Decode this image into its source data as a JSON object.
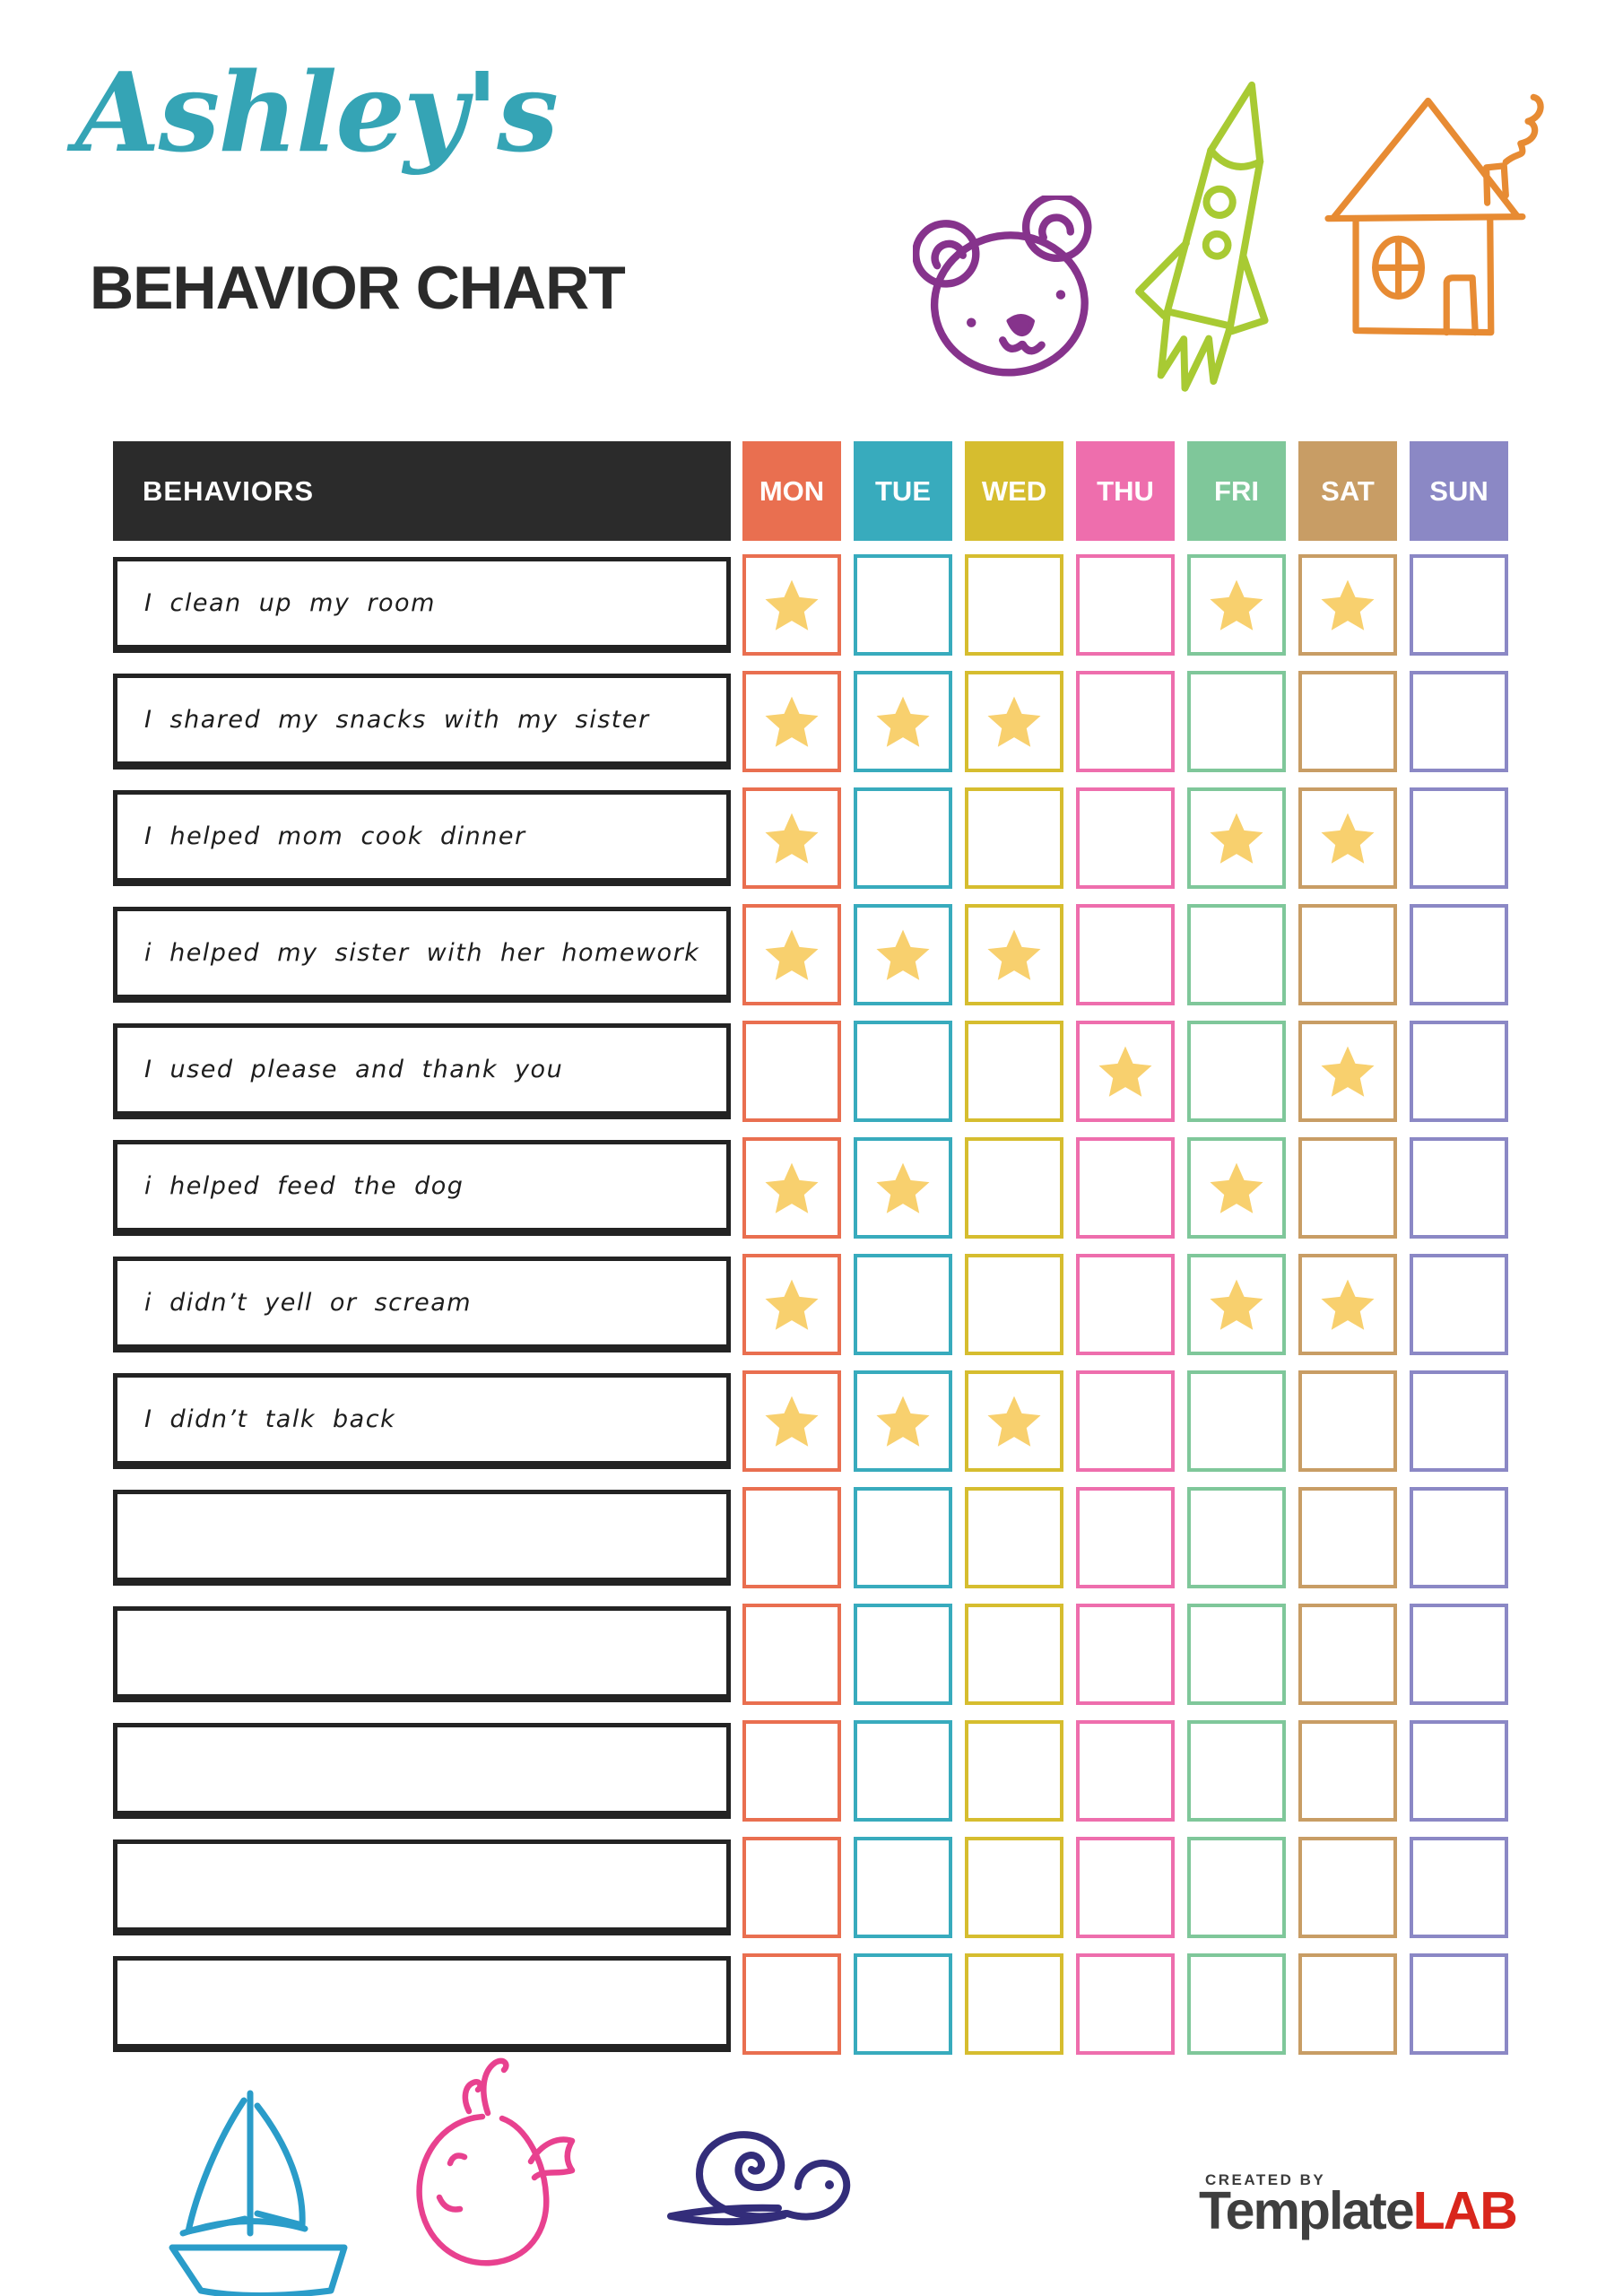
{
  "header": {
    "title": "Ashley's",
    "subtitle": "BEHAVIOR CHART",
    "title_color": "#35a4b5"
  },
  "icons": {
    "top": [
      "bear-icon",
      "rocket-icon",
      "house-icon"
    ],
    "bottom": [
      "sailboat-icon",
      "whale-icon",
      "snail-icon"
    ],
    "bear_color": "#86338c",
    "rocket_color": "#a8ca33",
    "house_color": "#e78b33",
    "sailboat_color": "#2a9cc9",
    "whale_color": "#e8418f",
    "snail_color": "#332d7a"
  },
  "table": {
    "behaviors_header": "BEHAVIORS",
    "header_bg": "#2b2b2b",
    "star_color": "#f8d06e",
    "days": [
      {
        "label": "MON",
        "color": "#e96f50"
      },
      {
        "label": "TUE",
        "color": "#38abbd"
      },
      {
        "label": "WED",
        "color": "#d6bd2f"
      },
      {
        "label": "THU",
        "color": "#ee6ead"
      },
      {
        "label": "FRI",
        "color": "#7fc79a"
      },
      {
        "label": "SAT",
        "color": "#c89d65"
      },
      {
        "label": "SUN",
        "color": "#8b88c5"
      }
    ],
    "rows": [
      {
        "label": "I clean up my room",
        "stars": [
          1,
          0,
          0,
          0,
          1,
          1,
          0
        ]
      },
      {
        "label": "I shared my snacks with my sister",
        "stars": [
          1,
          1,
          1,
          0,
          0,
          0,
          0
        ]
      },
      {
        "label": "I helped mom cook dinner",
        "stars": [
          1,
          0,
          0,
          0,
          1,
          1,
          0
        ]
      },
      {
        "label": "i helped my sister with her homework",
        "stars": [
          1,
          1,
          1,
          0,
          0,
          0,
          0
        ]
      },
      {
        "label": "I used please and thank you",
        "stars": [
          0,
          0,
          0,
          1,
          0,
          1,
          0
        ]
      },
      {
        "label": "i helped feed the dog",
        "stars": [
          1,
          1,
          0,
          0,
          1,
          0,
          0
        ]
      },
      {
        "label": "i didn’t yell or scream",
        "stars": [
          1,
          0,
          0,
          0,
          1,
          1,
          0
        ]
      },
      {
        "label": "I didn’t talk back",
        "stars": [
          1,
          1,
          1,
          0,
          0,
          0,
          0
        ]
      },
      {
        "label": "",
        "stars": [
          0,
          0,
          0,
          0,
          0,
          0,
          0
        ]
      },
      {
        "label": "",
        "stars": [
          0,
          0,
          0,
          0,
          0,
          0,
          0
        ]
      },
      {
        "label": "",
        "stars": [
          0,
          0,
          0,
          0,
          0,
          0,
          0
        ]
      },
      {
        "label": "",
        "stars": [
          0,
          0,
          0,
          0,
          0,
          0,
          0
        ]
      },
      {
        "label": "",
        "stars": [
          0,
          0,
          0,
          0,
          0,
          0,
          0
        ]
      }
    ]
  },
  "footer": {
    "credit_small": "CREATED BY",
    "brand_gray": "Template",
    "brand_red": "LAB"
  }
}
